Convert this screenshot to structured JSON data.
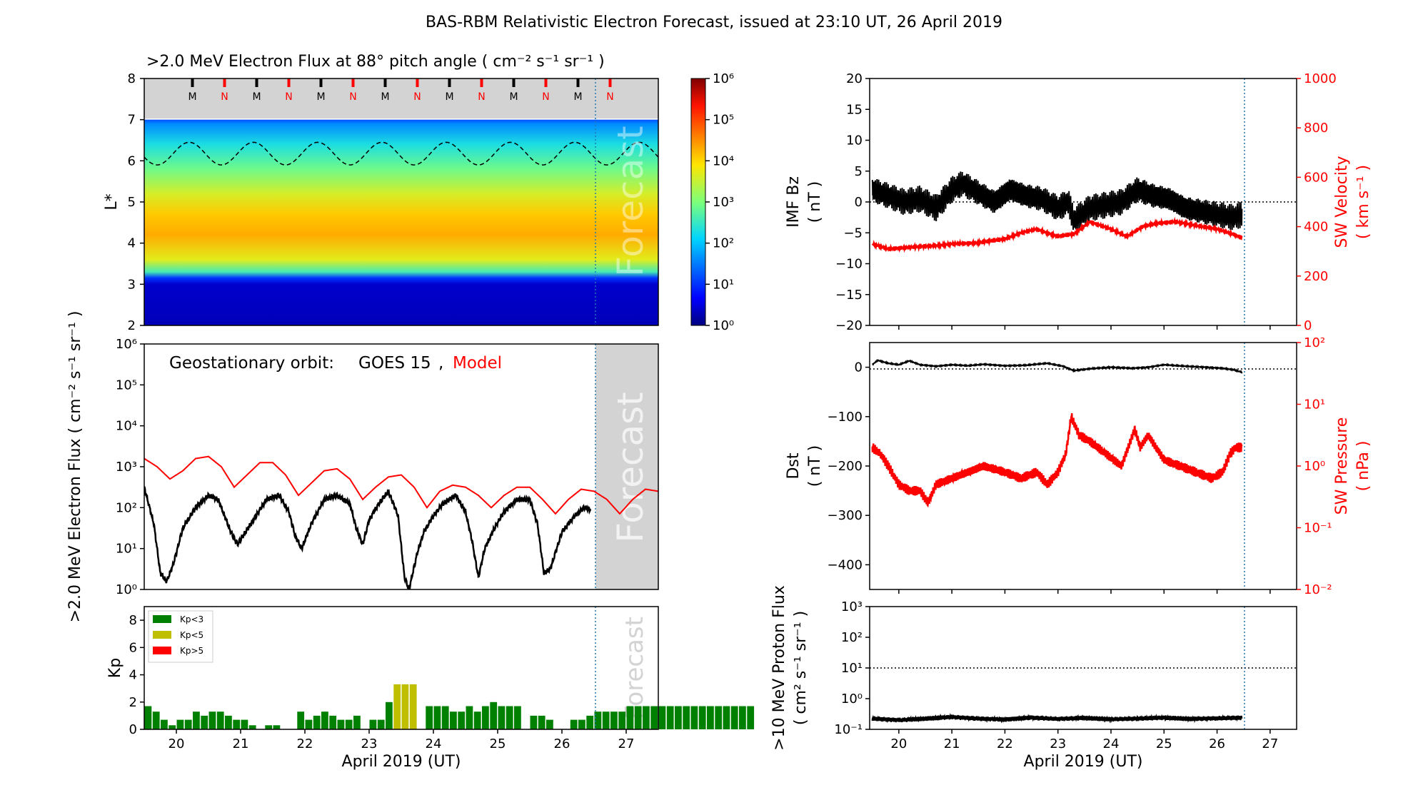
{
  "title": "BAS-RBM Relativistic Electron Forecast, issued at 23:10 UT, 26 April 2019",
  "xlabel": "April 2019 (UT)",
  "colors": {
    "model": "#ff0000",
    "obs": "#000000",
    "forecast_shade": "#d3d3d3",
    "kp_quiet": "#008000",
    "kp_active": "#bfbf00",
    "kp_storm": "#ff0000",
    "issue_line": "#1f77b4"
  },
  "chart_data": [
    {
      "id": "flux_map",
      "type": "heatmap",
      "title": ">2.0 MeV Electron Flux at 88° pitch angle ( cm⁻² s⁻¹ sr⁻¹ )",
      "ylabel": "L*",
      "ylim": [
        2,
        8
      ],
      "xlim": [
        19.5,
        27.5
      ],
      "yticks": [
        "2",
        "3",
        "4",
        "5",
        "6",
        "7",
        "8"
      ],
      "colorbar": {
        "ticks": [
          "10⁰",
          "10¹",
          "10²",
          "10³",
          "10⁴",
          "10⁵",
          "10⁶"
        ],
        "range": [
          0,
          6
        ],
        "log": true
      },
      "forecast_label": "Forecast",
      "mn_markers": [
        "M",
        "N",
        "M",
        "N",
        "M",
        "N",
        "M",
        "N",
        "M",
        "N",
        "M",
        "N",
        "M",
        "N"
      ],
      "profile_logflux": [
        [
          2.0,
          0.3
        ],
        [
          3.0,
          0.4
        ],
        [
          3.15,
          1.0
        ],
        [
          3.3,
          2.6
        ],
        [
          3.6,
          3.7
        ],
        [
          4.2,
          4.3
        ],
        [
          4.7,
          4.1
        ],
        [
          5.2,
          3.6
        ],
        [
          5.8,
          2.9
        ],
        [
          6.4,
          2.3
        ],
        [
          6.9,
          1.6
        ],
        [
          7.0,
          1.2
        ]
      ],
      "dashed_Lstar_range": [
        5.9,
        6.45
      ]
    },
    {
      "id": "geo_flux",
      "type": "line",
      "ylabel": ">2.0 MeV Electron Flux ( cm⁻² s⁻¹ sr⁻¹ )",
      "legend_label": "Geostationary orbit:",
      "log": true,
      "ylim": [
        0,
        6
      ],
      "yticks": [
        "10⁰",
        "10¹",
        "10²",
        "10³",
        "10⁴",
        "10⁵",
        "10⁶"
      ],
      "forecast_label": "Forecast",
      "series": [
        {
          "name": "GOES 15",
          "color": "#000000",
          "x": [
            19.5,
            19.65,
            19.75,
            19.85,
            19.95,
            20.1,
            20.3,
            20.5,
            20.65,
            20.75,
            20.85,
            20.95,
            21.2,
            21.4,
            21.6,
            21.75,
            21.85,
            21.95,
            22.1,
            22.3,
            22.5,
            22.7,
            22.8,
            22.9,
            23.0,
            23.15,
            23.3,
            23.45,
            23.55,
            23.62,
            23.75,
            23.85,
            24.0,
            24.15,
            24.35,
            24.5,
            24.6,
            24.7,
            24.8,
            24.95,
            25.1,
            25.3,
            25.5,
            25.62,
            25.72,
            25.82,
            26.0,
            26.2,
            26.35,
            26.45
          ],
          "y": [
            2.5,
            1.6,
            0.4,
            0.2,
            0.6,
            1.5,
            2.0,
            2.3,
            2.2,
            1.8,
            1.4,
            1.1,
            1.7,
            2.2,
            2.3,
            1.9,
            1.3,
            1.0,
            1.6,
            2.2,
            2.3,
            2.1,
            1.5,
            1.1,
            1.7,
            2.1,
            2.4,
            1.8,
            0.3,
            0.0,
            0.9,
            1.4,
            1.8,
            2.1,
            2.3,
            1.9,
            1.2,
            0.3,
            1.0,
            1.5,
            1.9,
            2.2,
            2.2,
            1.6,
            0.4,
            0.5,
            1.4,
            1.8,
            2.0,
            1.95
          ]
        },
        {
          "name": "Model",
          "color": "#ff0000",
          "x": [
            19.5,
            19.7,
            19.9,
            20.1,
            20.3,
            20.5,
            20.7,
            20.9,
            21.1,
            21.3,
            21.5,
            21.7,
            21.9,
            22.1,
            22.3,
            22.5,
            22.7,
            22.9,
            23.1,
            23.3,
            23.5,
            23.7,
            23.9,
            24.1,
            24.3,
            24.5,
            24.7,
            24.9,
            25.1,
            25.3,
            25.5,
            25.7,
            25.9,
            26.1,
            26.3,
            26.5,
            26.7,
            26.9,
            27.1,
            27.3,
            27.5
          ],
          "y": [
            3.2,
            3.0,
            2.7,
            2.9,
            3.2,
            3.25,
            3.0,
            2.5,
            2.8,
            3.1,
            3.1,
            2.8,
            2.3,
            2.6,
            2.9,
            2.95,
            2.7,
            2.2,
            2.5,
            2.75,
            2.8,
            2.5,
            2.0,
            2.4,
            2.55,
            2.5,
            2.3,
            2.0,
            2.3,
            2.5,
            2.5,
            2.2,
            1.85,
            2.2,
            2.45,
            2.4,
            2.2,
            1.85,
            2.2,
            2.45,
            2.4
          ]
        }
      ],
      "issue_time": 26.47
    },
    {
      "id": "kp",
      "type": "bar",
      "ylabel": "Kp",
      "ylim": [
        0,
        9
      ],
      "yticks": [
        "0",
        "2",
        "4",
        "6",
        "8"
      ],
      "xticks": [
        "20",
        "21",
        "22",
        "23",
        "24",
        "25",
        "26",
        "27"
      ],
      "legend": [
        "Kp<3",
        "Kp<5",
        "Kp>5"
      ],
      "forecast_label": "Forecast",
      "values": [
        1.7,
        1.3,
        0.7,
        0.3,
        0.7,
        0.7,
        1.3,
        1.0,
        1.3,
        1.3,
        1.0,
        0.7,
        0.7,
        0.3,
        0.0,
        0.3,
        0.3,
        0.0,
        0.0,
        1.3,
        0.7,
        1.0,
        1.3,
        1.0,
        0.7,
        0.7,
        1.0,
        0.0,
        0.7,
        0.7,
        2.0,
        3.3,
        3.3,
        3.3,
        0.0,
        1.7,
        1.7,
        1.7,
        1.3,
        1.3,
        1.7,
        1.3,
        1.7,
        2.0,
        1.7,
        1.7,
        1.7,
        0.0,
        1.0,
        1.0,
        0.7,
        0.0,
        0.0,
        0.7,
        0.7,
        1.0,
        1.3,
        1.3,
        1.3,
        1.3,
        1.7,
        1.7,
        1.7,
        1.7,
        1.7,
        1.7,
        1.7,
        1.7,
        1.7,
        1.7,
        1.7,
        1.7,
        1.7,
        1.7,
        1.7,
        1.7
      ]
    },
    {
      "id": "imf",
      "type": "line",
      "ylabel": "IMF Bz\n( nT )",
      "ylabel_right": "SW Velocity\n( km s⁻¹ )",
      "ylim": [
        -20,
        20
      ],
      "yticks": [
        "−20",
        "−15",
        "−10",
        "−5",
        "0",
        "5",
        "10",
        "15",
        "20"
      ],
      "ylim_right": [
        0,
        1000
      ],
      "yticks_right": [
        "0",
        "200",
        "400",
        "600",
        "800",
        "1000"
      ],
      "series": [
        {
          "name": "IMF Bz",
          "color": "#000000",
          "x": [
            19.5,
            19.8,
            20.1,
            20.4,
            20.7,
            21.0,
            21.2,
            21.5,
            21.8,
            22.1,
            22.4,
            22.7,
            23.0,
            23.2,
            23.3,
            23.6,
            23.9,
            24.2,
            24.5,
            24.8,
            25.1,
            25.4,
            25.7,
            26.0,
            26.3,
            26.47
          ],
          "y": [
            2,
            1,
            0,
            0.5,
            -1,
            2,
            3,
            1.5,
            0,
            2,
            1,
            0.5,
            -1,
            0,
            -3,
            -1,
            -0.5,
            0,
            2,
            1,
            0.5,
            -1,
            -1.5,
            -2,
            -2.5,
            -2
          ]
        },
        {
          "name": "SW Velocity",
          "color": "#ff0000",
          "x": [
            19.5,
            19.8,
            20.1,
            20.5,
            20.8,
            21.0,
            21.5,
            22.0,
            22.3,
            22.6,
            23.0,
            23.3,
            23.6,
            24.0,
            24.3,
            24.6,
            24.9,
            25.2,
            25.6,
            26.0,
            26.3,
            26.47
          ],
          "y": [
            330,
            310,
            315,
            320,
            325,
            330,
            335,
            350,
            375,
            390,
            360,
            370,
            420,
            390,
            360,
            400,
            415,
            420,
            405,
            390,
            370,
            355
          ]
        }
      ]
    },
    {
      "id": "dst",
      "type": "line",
      "ylabel": "Dst\n( nT )",
      "ylabel_right": "SW Pressure\n( nPa )",
      "ylim": [
        -450,
        50
      ],
      "yticks": [
        "−400",
        "−300",
        "−200",
        "−100",
        "0"
      ],
      "ylim_right_log": [
        -2,
        2
      ],
      "yticks_right": [
        "10⁻²",
        "10⁻¹",
        "10⁰",
        "10¹",
        "10²"
      ],
      "series": [
        {
          "name": "Dst",
          "color": "#000000",
          "x": [
            19.5,
            19.6,
            19.8,
            20.0,
            20.2,
            20.4,
            20.7,
            21.0,
            21.3,
            21.6,
            22.0,
            22.4,
            22.8,
            23.1,
            23.3,
            23.6,
            24.0,
            24.4,
            24.7,
            25.0,
            25.4,
            25.8,
            26.1,
            26.3,
            26.47
          ],
          "y": [
            5,
            14,
            8,
            5,
            13,
            5,
            2,
            5,
            3,
            6,
            3,
            4,
            8,
            2,
            -7,
            -3,
            0,
            -2,
            0,
            5,
            2,
            0,
            -2,
            -5,
            -10
          ]
        },
        {
          "name": "SW Pressure",
          "color": "#ff0000",
          "x": [
            19.5,
            19.65,
            19.8,
            20.0,
            20.2,
            20.4,
            20.55,
            20.7,
            21.0,
            21.3,
            21.6,
            22.0,
            22.3,
            22.6,
            22.8,
            23.0,
            23.15,
            23.25,
            23.4,
            23.6,
            23.9,
            24.2,
            24.45,
            24.55,
            24.7,
            25.0,
            25.3,
            25.6,
            25.9,
            26.1,
            26.25,
            26.35,
            26.47
          ],
          "y": [
            0.3,
            0.2,
            0.0,
            -0.3,
            -0.4,
            -0.4,
            -0.6,
            -0.3,
            -0.2,
            -0.1,
            0.0,
            -0.1,
            -0.2,
            -0.1,
            -0.3,
            -0.1,
            0.2,
            0.8,
            0.5,
            0.4,
            0.2,
            0.0,
            0.6,
            0.3,
            0.5,
            0.1,
            0.0,
            -0.1,
            -0.2,
            -0.1,
            0.2,
            0.3,
            0.3
          ]
        }
      ]
    },
    {
      "id": "proton",
      "type": "line",
      "ylabel": ">10 MeV Proton Flux\n( cm² s⁻¹ sr⁻¹ )",
      "log": true,
      "ylim": [
        -1,
        3
      ],
      "yticks": [
        "10⁻¹",
        "10⁰",
        "10¹",
        "10²",
        "10³"
      ],
      "xticks": [
        "20",
        "21",
        "22",
        "23",
        "24",
        "25",
        "26",
        "27"
      ],
      "threshold": 1,
      "series": [
        {
          "name": ">10 MeV Proton Flux",
          "color": "#000000",
          "x": [
            19.5,
            20.0,
            20.5,
            21.0,
            21.5,
            22.0,
            22.5,
            23.0,
            23.5,
            24.0,
            24.5,
            25.0,
            25.5,
            26.0,
            26.47
          ],
          "y": [
            -0.65,
            -0.7,
            -0.65,
            -0.6,
            -0.65,
            -0.68,
            -0.62,
            -0.66,
            -0.63,
            -0.67,
            -0.65,
            -0.62,
            -0.66,
            -0.64,
            -0.62
          ]
        }
      ]
    }
  ]
}
